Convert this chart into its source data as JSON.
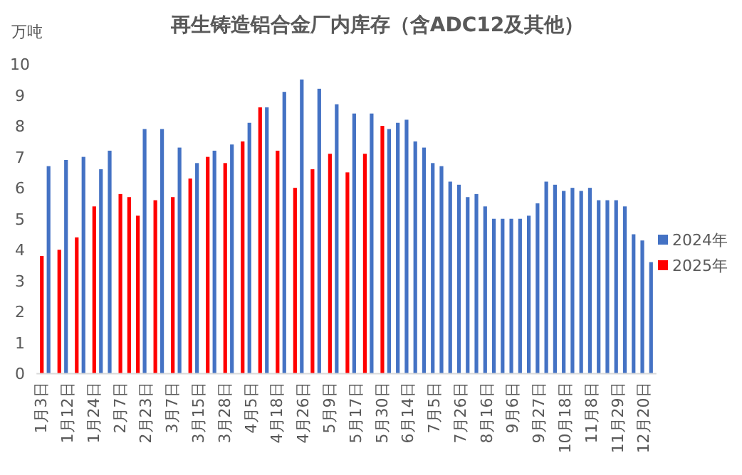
{
  "chart_data": {
    "type": "bar",
    "title": "再生铸造铝合金厂内库存（含ADC12及其他）",
    "ylabel": "万吨",
    "categories": [
      "1月3日",
      null,
      null,
      "1月12日",
      null,
      null,
      "1月24日",
      null,
      null,
      "2月7日",
      null,
      null,
      "2月23日",
      null,
      null,
      "3月7日",
      null,
      null,
      "3月15日",
      null,
      null,
      "3月28日",
      null,
      null,
      "4月5日",
      null,
      null,
      "4月18日",
      null,
      null,
      "4月26日",
      null,
      null,
      "5月9日",
      null,
      null,
      "5月17日",
      null,
      null,
      "5月30日",
      null,
      null,
      "6月14日",
      null,
      null,
      "7月5日",
      null,
      null,
      "7月26日",
      null,
      null,
      "8月16日",
      null,
      null,
      "9月6日",
      null,
      null,
      "9月27日",
      null,
      null,
      "10月18日",
      null,
      null,
      "11月8日",
      null,
      null,
      "11月29日",
      null,
      null,
      "12月20日",
      null
    ],
    "series": [
      {
        "name": "2024年",
        "color": "#4472c4",
        "values": [
          null,
          6.7,
          null,
          6.9,
          null,
          7.0,
          null,
          6.6,
          7.2,
          null,
          null,
          null,
          7.9,
          null,
          7.9,
          null,
          7.3,
          null,
          6.8,
          null,
          7.2,
          null,
          7.4,
          null,
          8.1,
          null,
          8.6,
          null,
          9.1,
          null,
          9.5,
          null,
          9.2,
          null,
          8.7,
          null,
          8.4,
          null,
          8.4,
          null,
          7.9,
          8.1,
          8.2,
          7.5,
          7.3,
          6.8,
          6.7,
          6.2,
          6.1,
          5.7,
          5.8,
          5.4,
          5.0,
          5.0,
          5.0,
          5.0,
          5.1,
          5.5,
          6.2,
          6.1,
          5.9,
          6.0,
          5.9,
          6.0,
          5.6,
          5.6,
          5.6,
          5.4,
          4.5,
          4.3,
          3.6
        ]
      },
      {
        "name": "2025年",
        "color": "#ff0000",
        "values": [
          3.8,
          null,
          4.0,
          null,
          4.4,
          null,
          5.4,
          null,
          null,
          5.8,
          5.7,
          5.1,
          null,
          5.6,
          null,
          5.7,
          null,
          6.3,
          null,
          7.0,
          null,
          6.8,
          null,
          7.5,
          null,
          8.6,
          null,
          7.2,
          null,
          6.0,
          null,
          6.6,
          null,
          7.1,
          null,
          6.5,
          null,
          7.1,
          null,
          8.0,
          null,
          null,
          null,
          null,
          null,
          null,
          null,
          null,
          null,
          null,
          null,
          null,
          null,
          null,
          null,
          null,
          null,
          null,
          null,
          null,
          null,
          null,
          null,
          null,
          null,
          null,
          null,
          null,
          null,
          null,
          null
        ]
      }
    ],
    "ylim": [
      0,
      10
    ],
    "yticks": [
      0,
      1,
      2,
      3,
      4,
      5,
      6,
      7,
      8,
      9,
      10
    ],
    "legend": "right"
  }
}
